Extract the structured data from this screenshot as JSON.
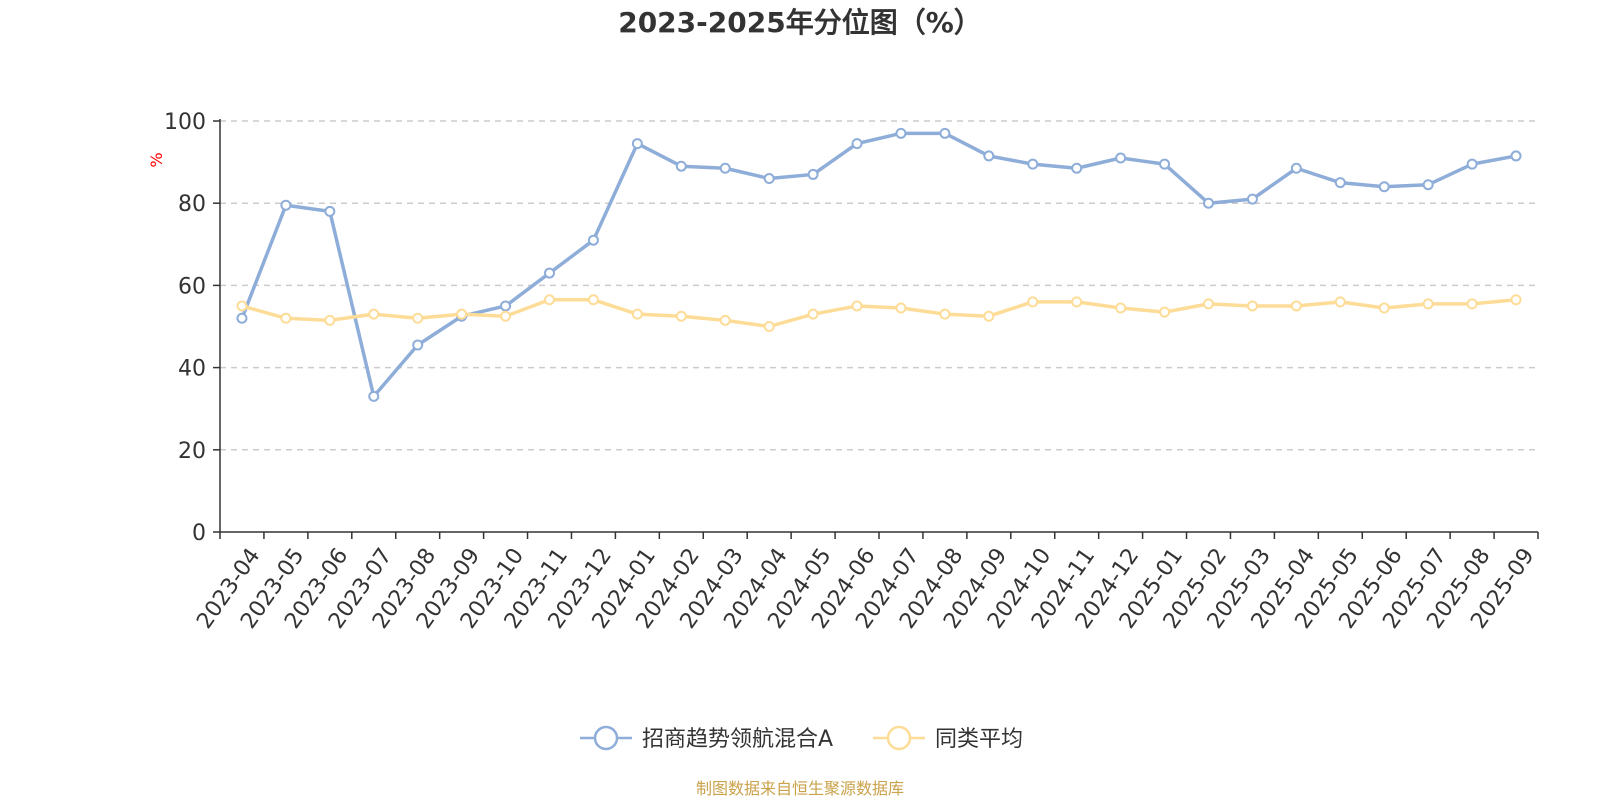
{
  "chart_data": {
    "type": "line",
    "title": "2023-2025年分位图（%）",
    "ylabel": "%",
    "xlabel": "",
    "ylim": [
      0,
      100
    ],
    "y_ticks": [
      "0",
      "20",
      "40",
      "60",
      "80",
      "100"
    ],
    "grid": true,
    "legend_position": "bottom",
    "categories": [
      "2023-04",
      "2023-05",
      "2023-06",
      "2023-07",
      "2023-08",
      "2023-09",
      "2023-10",
      "2023-11",
      "2023-12",
      "2024-01",
      "2024-02",
      "2024-03",
      "2024-04",
      "2024-05",
      "2024-06",
      "2024-07",
      "2024-08",
      "2024-09",
      "2024-10",
      "2024-11",
      "2024-12",
      "2025-01",
      "2025-02",
      "2025-03",
      "2025-04",
      "2025-05",
      "2025-06",
      "2025-07",
      "2025-08",
      "2025-09"
    ],
    "series": [
      {
        "name": "招商趋势领航混合A",
        "color": "#8eadd8",
        "values": [
          52,
          79.5,
          78,
          33,
          45.5,
          52.5,
          55,
          63,
          71,
          94.5,
          89,
          88.5,
          86,
          87,
          94.5,
          97,
          97,
          91.5,
          89.5,
          88.5,
          91,
          89.5,
          80,
          81,
          88.5,
          85,
          84,
          84.5,
          89.5,
          91.5
        ]
      },
      {
        "name": "同类平均",
        "color": "#fddc98",
        "values": [
          55,
          52,
          51.5,
          53,
          52,
          53,
          52.5,
          56.5,
          56.5,
          53,
          52.5,
          51.5,
          50,
          53,
          55,
          54.5,
          53,
          52.5,
          56,
          56,
          54.5,
          53.5,
          55.5,
          55,
          55,
          56,
          54.5,
          55.5,
          55.5,
          56.5
        ]
      }
    ]
  },
  "source_text": "制图数据来自恒生聚源数据库",
  "colors": {
    "axis": "#333333",
    "grid": "#cccccc",
    "ylabel": "#ff0000",
    "source": "#c9a24a"
  }
}
